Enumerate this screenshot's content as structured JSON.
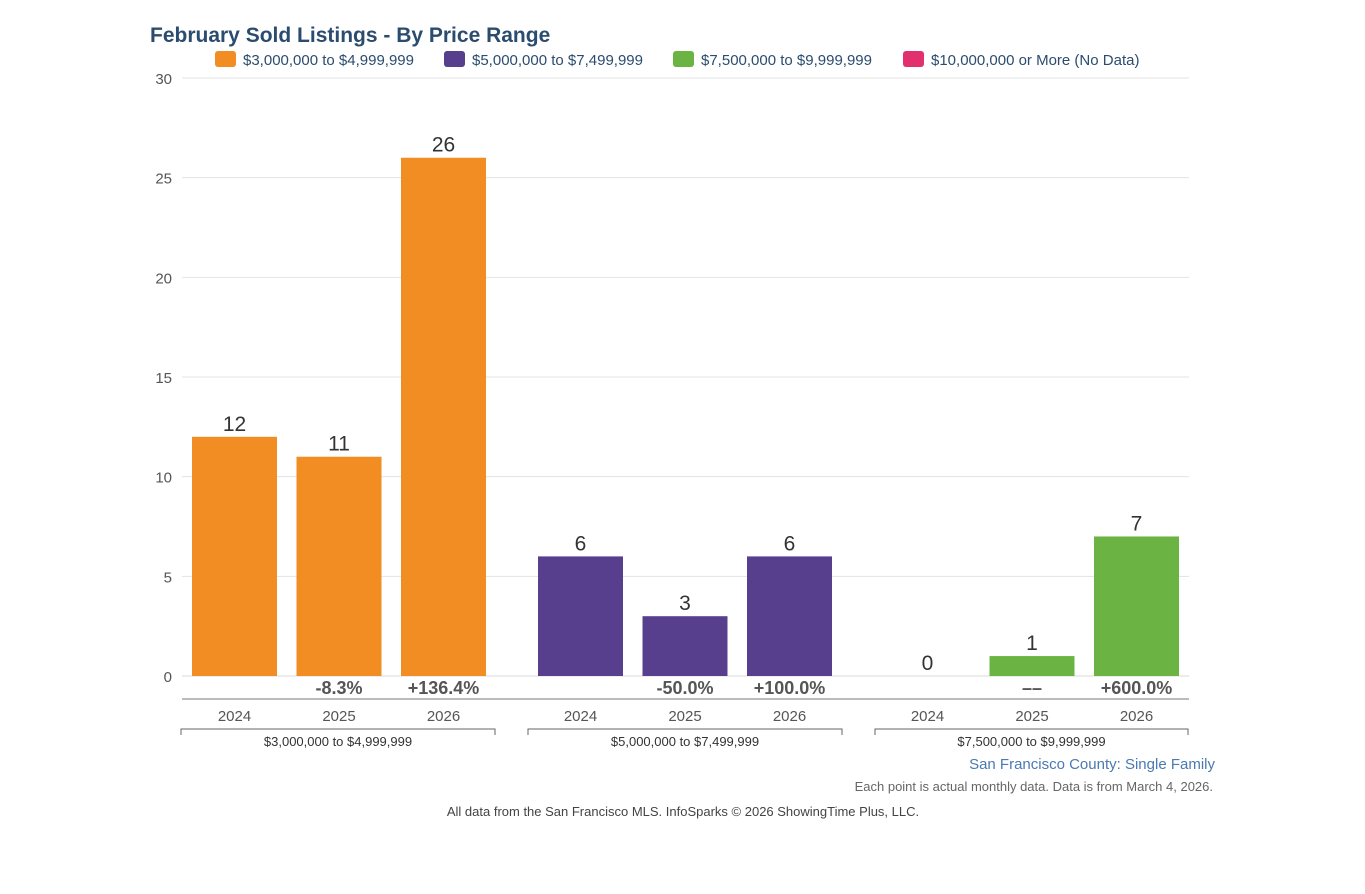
{
  "chart_data": {
    "type": "bar",
    "title": "February Sold Listings - By Price Range",
    "xlabel": "",
    "ylabel": "",
    "ylim": [
      0,
      30
    ],
    "yticks": [
      0,
      5,
      10,
      15,
      20,
      25,
      30
    ],
    "grid": true,
    "legend_position": "top",
    "legend": [
      {
        "label": "$3,000,000 to $4,999,999",
        "color": "#f18d22"
      },
      {
        "label": "$5,000,000 to $7,499,999",
        "color": "#583f8d"
      },
      {
        "label": "$7,500,000 to $9,999,999",
        "color": "#6bb444"
      },
      {
        "label": "$10,000,000 or More (No Data)",
        "color": "#e2306f"
      }
    ],
    "groups": [
      {
        "name": "$3,000,000 to $4,999,999",
        "color": "#f18d22",
        "bars": [
          {
            "year": "2024",
            "value": 12,
            "label": "12",
            "change": ""
          },
          {
            "year": "2025",
            "value": 11,
            "label": "11",
            "change": "-8.3%"
          },
          {
            "year": "2026",
            "value": 26,
            "label": "26",
            "change": "+136.4%"
          }
        ]
      },
      {
        "name": "$5,000,000 to $7,499,999",
        "color": "#583f8d",
        "bars": [
          {
            "year": "2024",
            "value": 6,
            "label": "6",
            "change": ""
          },
          {
            "year": "2025",
            "value": 3,
            "label": "3",
            "change": "-50.0%"
          },
          {
            "year": "2026",
            "value": 6,
            "label": "6",
            "change": "+100.0%"
          }
        ]
      },
      {
        "name": "$7,500,000 to $9,999,999",
        "color": "#6bb444",
        "bars": [
          {
            "year": "2024",
            "value": 0,
            "label": "0",
            "change": ""
          },
          {
            "year": "2025",
            "value": 1,
            "label": "1",
            "change": "––"
          },
          {
            "year": "2026",
            "value": 7,
            "label": "7",
            "change": "+600.0%"
          }
        ]
      }
    ],
    "subtitle": "San Francisco County: Single Family",
    "note": "Each point is actual monthly data. Data is from March 4, 2026.",
    "footer": "All data from the San Francisco MLS. InfoSparks © 2026 ShowingTime Plus, LLC."
  },
  "colors": {
    "title": "#2b4c6f",
    "axis_text": "#555555",
    "value_label": "#333333",
    "change_label": "#555555",
    "subtitle": "#4a7ab0",
    "note": "#666666",
    "grid": "#e3e3e3"
  }
}
